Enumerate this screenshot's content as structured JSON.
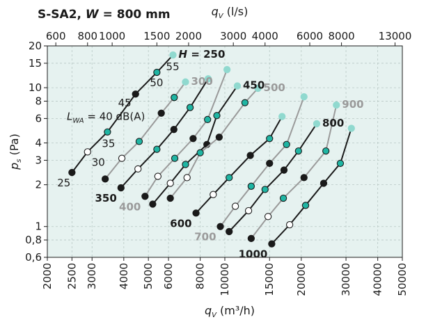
{
  "chart_data": {
    "type": "line",
    "title": "S-SA2, W = 800 mm",
    "title_parts": [
      "S-SA2, ",
      "W",
      " = 800 mm"
    ],
    "xlabel_bottom": "q_V (m³/h)",
    "xlabel_bottom_parts": [
      "q",
      "V",
      " (m³/h)"
    ],
    "xlabel_top": "q_V (l/s)",
    "xlabel_top_parts": [
      "q",
      "V",
      " (l/s)"
    ],
    "ylabel": "p_s (Pa)",
    "ylabel_parts": [
      "p",
      "s",
      " (Pa)"
    ],
    "x_scale": "log",
    "y_scale": "log",
    "xlim": [
      2000,
      50000
    ],
    "ylim": [
      0.6,
      20
    ],
    "grid": true,
    "background_color": "#e6f2f0",
    "x_ticks": [
      2000,
      2500,
      3000,
      4000,
      5000,
      6000,
      8000,
      10000,
      15000,
      20000,
      30000,
      40000,
      50000
    ],
    "x_tick_labels": [
      "2000",
      "2500",
      "3000",
      "4000",
      "5000",
      "6000",
      "8000",
      "10000",
      "15000",
      "20000",
      "30000",
      "40000",
      "50000"
    ],
    "x_top_ticks": [
      600,
      800,
      1000,
      1500,
      2000,
      3000,
      4000,
      6000,
      8000,
      13000
    ],
    "x_top_tick_labels": [
      "600",
      "800",
      "1000",
      "1500",
      "2000",
      "3000",
      "4000",
      "6000",
      "8000",
      "13000"
    ],
    "y_ticks": [
      0.6,
      0.8,
      1,
      2,
      3,
      4,
      6,
      8,
      10,
      15,
      20
    ],
    "y_tick_labels": [
      "0,6",
      "0,8",
      "1",
      "2",
      "3",
      "4",
      "6",
      "8",
      "10",
      "15",
      "20"
    ],
    "colors": {
      "black_line": "#1a1a1a",
      "grey_line": "#9a9a9a",
      "teal_marker": "#1fb5a3",
      "light_teal_marker": "#90d9cf",
      "grid": "#b8c8c4"
    },
    "series": [
      {
        "name": "H = 250",
        "label": "H = 250",
        "label_pos": "top",
        "color": "#1a1a1a",
        "label_color": "#1a1a1a",
        "x": [
          2500,
          2880,
          3450,
          4450,
          5400,
          6250
        ],
        "y": [
          2.45,
          3.45,
          4.8,
          9.0,
          12.9,
          17.2
        ]
      },
      {
        "name": "300",
        "label": "300",
        "label_pos": "top",
        "color": "#9a9a9a",
        "label_color": "#9a9a9a",
        "x": [
          3380,
          3930,
          4600,
          5620,
          6320,
          7000
        ],
        "y": [
          2.2,
          3.1,
          4.1,
          6.55,
          8.5,
          11.0
        ]
      },
      {
        "name": "350",
        "label": "350",
        "label_pos": "bottom",
        "color": "#1a1a1a",
        "label_color": "#1a1a1a",
        "x": [
          3900,
          4550,
          5400,
          6300,
          7300,
          8600
        ],
        "y": [
          1.9,
          2.6,
          3.6,
          5.0,
          7.2,
          11.6
        ]
      },
      {
        "name": "400",
        "label": "400",
        "label_pos": "bottom",
        "color": "#9a9a9a",
        "label_color": "#9a9a9a",
        "x": [
          4850,
          5450,
          6350,
          7500,
          8550,
          10200
        ],
        "y": [
          1.65,
          2.3,
          3.1,
          4.3,
          5.9,
          13.5
        ]
      },
      {
        "name": "450",
        "label": "450",
        "label_pos": "top",
        "color": "#1a1a1a",
        "label_color": "#1a1a1a",
        "x": [
          5200,
          6100,
          7000,
          8500,
          9300,
          11200
        ],
        "y": [
          1.45,
          2.05,
          2.8,
          3.9,
          6.3,
          10.3
        ]
      },
      {
        "name": "500",
        "label": "500",
        "label_pos": "top",
        "color": "#9a9a9a",
        "label_color": "#9a9a9a",
        "x": [
          6100,
          7100,
          8000,
          9500,
          12000,
          13500
        ],
        "y": [
          1.6,
          2.25,
          3.4,
          4.4,
          7.8,
          9.9
        ]
      },
      {
        "name": "600",
        "label": "600",
        "label_pos": "bottom",
        "color": "#1a1a1a",
        "label_color": "#1a1a1a",
        "x": [
          7700,
          9000,
          10400,
          12600,
          15000,
          16800
        ],
        "y": [
          1.25,
          1.7,
          2.25,
          3.25,
          4.3,
          6.2
        ]
      },
      {
        "name": "700",
        "label": "700",
        "label_pos": "bottom",
        "color": "#9a9a9a",
        "label_color": "#9a9a9a",
        "x": [
          9600,
          11000,
          12700,
          15000,
          17500,
          20500
        ],
        "y": [
          1.0,
          1.4,
          1.95,
          2.85,
          3.9,
          8.6
        ]
      },
      {
        "name": "800",
        "label": "800",
        "label_pos": "top",
        "color": "#1a1a1a",
        "label_color": "#1a1a1a",
        "x": [
          10400,
          12400,
          14400,
          17100,
          19500,
          23000
        ],
        "y": [
          0.92,
          1.3,
          1.85,
          2.55,
          3.5,
          5.5
        ]
      },
      {
        "name": "900",
        "label": "900",
        "label_pos": "top",
        "color": "#9a9a9a",
        "label_color": "#9a9a9a",
        "x": [
          12700,
          14800,
          17000,
          20500,
          25000,
          27500
        ],
        "y": [
          0.82,
          1.18,
          1.6,
          2.25,
          3.5,
          7.5
        ]
      },
      {
        "name": "1000",
        "label": "1000",
        "label_pos": "bottom",
        "color": "#1a1a1a",
        "label_color": "#1a1a1a",
        "x": [
          15300,
          18000,
          20800,
          24500,
          28500,
          31500
        ],
        "y": [
          0.75,
          1.03,
          1.42,
          2.05,
          2.85,
          5.1
        ]
      }
    ],
    "marker_styles": [
      "black",
      "white",
      "teal",
      "black",
      "teal",
      "light"
    ],
    "marker_legend": {
      "prefix": "L",
      "prefix_sub": "WA",
      "first": " = 40 dB(A)",
      "labels": [
        "25",
        "30",
        "35",
        "45",
        "50",
        "55"
      ]
    }
  }
}
